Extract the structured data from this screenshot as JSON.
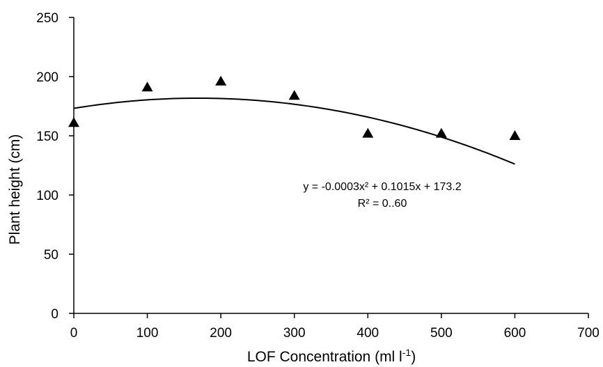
{
  "chart_data": {
    "type": "scatter",
    "xlabel": "LOF Concentration (ml l",
    "xlabel_sup": "-1",
    "xlabel_suffix": ")",
    "ylabel": "Plant height (cm)",
    "xlim": [
      0,
      700
    ],
    "ylim": [
      0,
      250
    ],
    "x_ticks": [
      0,
      100,
      200,
      300,
      400,
      500,
      600,
      700
    ],
    "y_ticks": [
      0,
      50,
      100,
      150,
      200,
      250
    ],
    "grid": false,
    "series": [
      {
        "marker": "triangle",
        "color": "#000000",
        "points": [
          {
            "x": 0,
            "y": 161
          },
          {
            "x": 100,
            "y": 191
          },
          {
            "x": 200,
            "y": 196
          },
          {
            "x": 300,
            "y": 184
          },
          {
            "x": 400,
            "y": 152
          },
          {
            "x": 500,
            "y": 152
          },
          {
            "x": 600,
            "y": 150
          }
        ]
      }
    ],
    "trendline": {
      "type": "polynomial",
      "coefficients": {
        "a": -0.0003,
        "b": 0.1015,
        "c": 173.2
      },
      "x_range": [
        0,
        600
      ],
      "color": "#000000"
    },
    "annotations": {
      "equation": "y = -0.0003x² + 0.1015x + 173.2",
      "r_squared": "R² = 0..60"
    }
  }
}
